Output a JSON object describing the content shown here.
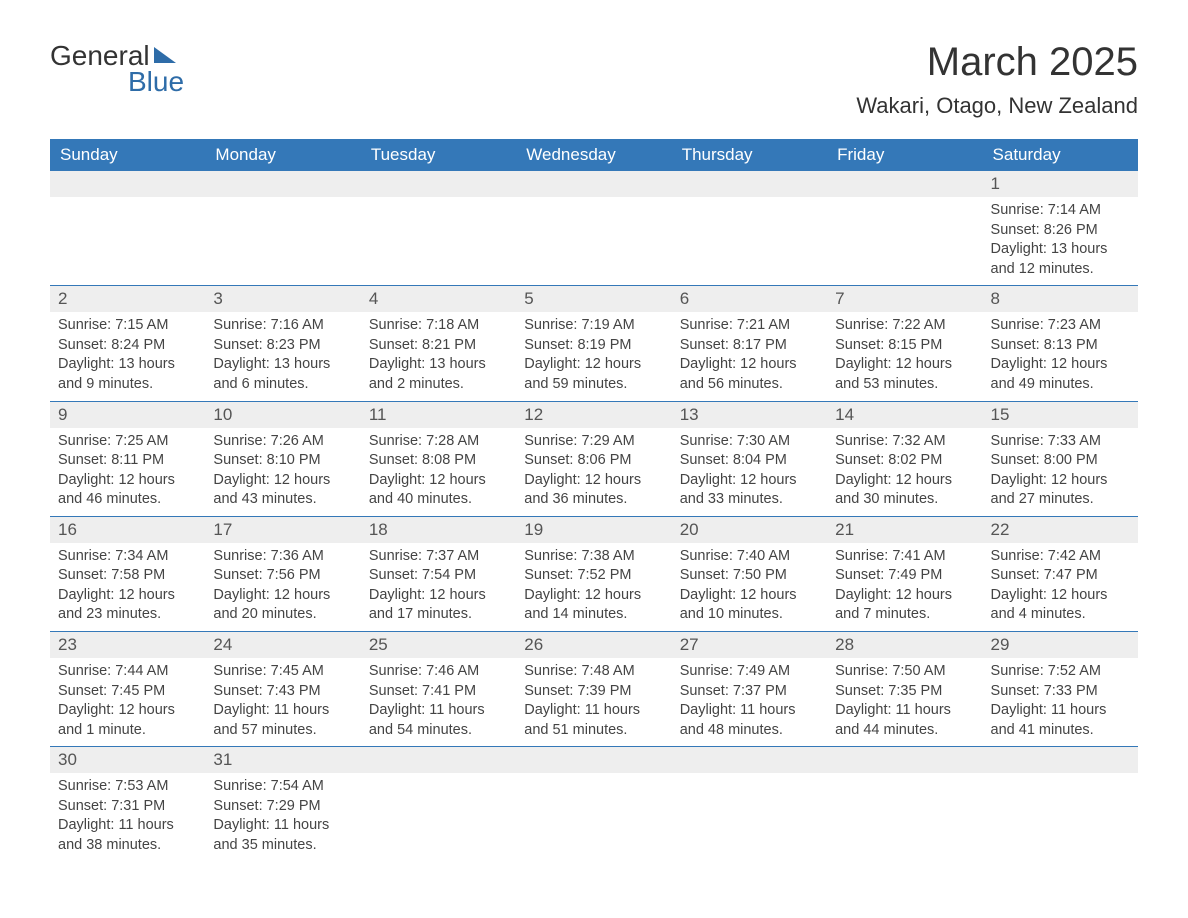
{
  "logo": {
    "text1": "General",
    "text2": "Blue"
  },
  "title": "March 2025",
  "location": "Wakari, Otago, New Zealand",
  "colors": {
    "header_bg": "#3478b8",
    "header_text": "#ffffff",
    "daynum_bg": "#eeeeee",
    "daynum_text": "#555555",
    "body_text": "#444444",
    "logo_accent": "#2e6ca8",
    "row_border": "#3478b8",
    "page_bg": "#ffffff"
  },
  "typography": {
    "title_fontsize": 40,
    "location_fontsize": 22,
    "header_fontsize": 17,
    "daynum_fontsize": 17,
    "body_fontsize": 14.5,
    "font_family": "Arial"
  },
  "week_headers": [
    "Sunday",
    "Monday",
    "Tuesday",
    "Wednesday",
    "Thursday",
    "Friday",
    "Saturday"
  ],
  "weeks": [
    [
      null,
      null,
      null,
      null,
      null,
      null,
      {
        "d": "1",
        "sr": "7:14 AM",
        "ss": "8:26 PM",
        "dl": "13 hours and 12 minutes."
      }
    ],
    [
      {
        "d": "2",
        "sr": "7:15 AM",
        "ss": "8:24 PM",
        "dl": "13 hours and 9 minutes."
      },
      {
        "d": "3",
        "sr": "7:16 AM",
        "ss": "8:23 PM",
        "dl": "13 hours and 6 minutes."
      },
      {
        "d": "4",
        "sr": "7:18 AM",
        "ss": "8:21 PM",
        "dl": "13 hours and 2 minutes."
      },
      {
        "d": "5",
        "sr": "7:19 AM",
        "ss": "8:19 PM",
        "dl": "12 hours and 59 minutes."
      },
      {
        "d": "6",
        "sr": "7:21 AM",
        "ss": "8:17 PM",
        "dl": "12 hours and 56 minutes."
      },
      {
        "d": "7",
        "sr": "7:22 AM",
        "ss": "8:15 PM",
        "dl": "12 hours and 53 minutes."
      },
      {
        "d": "8",
        "sr": "7:23 AM",
        "ss": "8:13 PM",
        "dl": "12 hours and 49 minutes."
      }
    ],
    [
      {
        "d": "9",
        "sr": "7:25 AM",
        "ss": "8:11 PM",
        "dl": "12 hours and 46 minutes."
      },
      {
        "d": "10",
        "sr": "7:26 AM",
        "ss": "8:10 PM",
        "dl": "12 hours and 43 minutes."
      },
      {
        "d": "11",
        "sr": "7:28 AM",
        "ss": "8:08 PM",
        "dl": "12 hours and 40 minutes."
      },
      {
        "d": "12",
        "sr": "7:29 AM",
        "ss": "8:06 PM",
        "dl": "12 hours and 36 minutes."
      },
      {
        "d": "13",
        "sr": "7:30 AM",
        "ss": "8:04 PM",
        "dl": "12 hours and 33 minutes."
      },
      {
        "d": "14",
        "sr": "7:32 AM",
        "ss": "8:02 PM",
        "dl": "12 hours and 30 minutes."
      },
      {
        "d": "15",
        "sr": "7:33 AM",
        "ss": "8:00 PM",
        "dl": "12 hours and 27 minutes."
      }
    ],
    [
      {
        "d": "16",
        "sr": "7:34 AM",
        "ss": "7:58 PM",
        "dl": "12 hours and 23 minutes."
      },
      {
        "d": "17",
        "sr": "7:36 AM",
        "ss": "7:56 PM",
        "dl": "12 hours and 20 minutes."
      },
      {
        "d": "18",
        "sr": "7:37 AM",
        "ss": "7:54 PM",
        "dl": "12 hours and 17 minutes."
      },
      {
        "d": "19",
        "sr": "7:38 AM",
        "ss": "7:52 PM",
        "dl": "12 hours and 14 minutes."
      },
      {
        "d": "20",
        "sr": "7:40 AM",
        "ss": "7:50 PM",
        "dl": "12 hours and 10 minutes."
      },
      {
        "d": "21",
        "sr": "7:41 AM",
        "ss": "7:49 PM",
        "dl": "12 hours and 7 minutes."
      },
      {
        "d": "22",
        "sr": "7:42 AM",
        "ss": "7:47 PM",
        "dl": "12 hours and 4 minutes."
      }
    ],
    [
      {
        "d": "23",
        "sr": "7:44 AM",
        "ss": "7:45 PM",
        "dl": "12 hours and 1 minute."
      },
      {
        "d": "24",
        "sr": "7:45 AM",
        "ss": "7:43 PM",
        "dl": "11 hours and 57 minutes."
      },
      {
        "d": "25",
        "sr": "7:46 AM",
        "ss": "7:41 PM",
        "dl": "11 hours and 54 minutes."
      },
      {
        "d": "26",
        "sr": "7:48 AM",
        "ss": "7:39 PM",
        "dl": "11 hours and 51 minutes."
      },
      {
        "d": "27",
        "sr": "7:49 AM",
        "ss": "7:37 PM",
        "dl": "11 hours and 48 minutes."
      },
      {
        "d": "28",
        "sr": "7:50 AM",
        "ss": "7:35 PM",
        "dl": "11 hours and 44 minutes."
      },
      {
        "d": "29",
        "sr": "7:52 AM",
        "ss": "7:33 PM",
        "dl": "11 hours and 41 minutes."
      }
    ],
    [
      {
        "d": "30",
        "sr": "7:53 AM",
        "ss": "7:31 PM",
        "dl": "11 hours and 38 minutes."
      },
      {
        "d": "31",
        "sr": "7:54 AM",
        "ss": "7:29 PM",
        "dl": "11 hours and 35 minutes."
      },
      null,
      null,
      null,
      null,
      null
    ]
  ],
  "labels": {
    "sunrise": "Sunrise: ",
    "sunset": "Sunset: ",
    "daylight": "Daylight: "
  }
}
